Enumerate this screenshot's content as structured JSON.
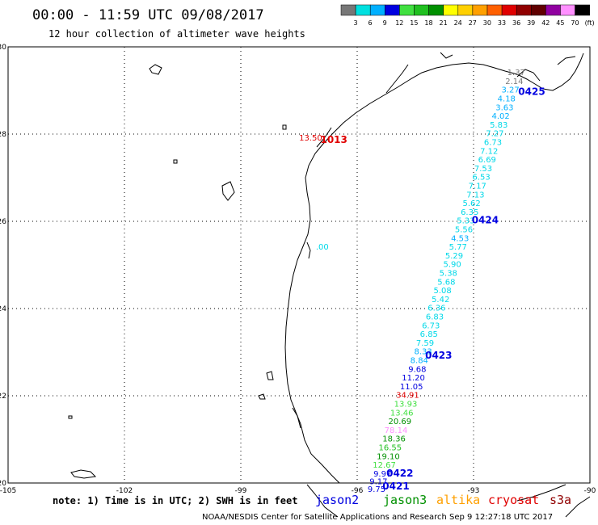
{
  "title": "00:00 - 11:59 UTC 09/08/2017",
  "subtitle": "12 hour collection of altimeter wave heights",
  "colorbar": {
    "labels": [
      "3",
      "6",
      "9",
      "12",
      "15",
      "18",
      "21",
      "24",
      "27",
      "30",
      "33",
      "36",
      "39",
      "42",
      "45",
      "70",
      "(ft)"
    ],
    "colors": [
      "#777777",
      "#00e0e0",
      "#00b0ff",
      "#0000e0",
      "#40e040",
      "#20c020",
      "#009000",
      "#ffff00",
      "#ffd000",
      "#ffa000",
      "#ff6000",
      "#e00000",
      "#900000",
      "#600000",
      "#9000a0",
      "#ff90ff",
      "#000000"
    ]
  },
  "axes": {
    "lon_labels": [
      "-105",
      "-102",
      "-99",
      "-96",
      "-93",
      "-90"
    ],
    "lat_labels": [
      "30",
      "28",
      "26",
      "24",
      "22",
      "20"
    ]
  },
  "swh_points": [
    {
      "text": "1.37",
      "lon": -91.9,
      "lat": 29.35,
      "color": "#777777"
    },
    {
      "text": "2.14",
      "lon": -91.95,
      "lat": 29.15,
      "color": "#777777"
    },
    {
      "text": "3.27",
      "lon": -92.05,
      "lat": 28.95,
      "color": "#00b0ff"
    },
    {
      "text": "4.18",
      "lon": -92.15,
      "lat": 28.75,
      "color": "#00b0ff"
    },
    {
      "text": "3.63",
      "lon": -92.2,
      "lat": 28.55,
      "color": "#00b0ff"
    },
    {
      "text": "4.02",
      "lon": -92.3,
      "lat": 28.35,
      "color": "#00b0ff"
    },
    {
      "text": "5.83",
      "lon": -92.35,
      "lat": 28.15,
      "color": "#00d8e8"
    },
    {
      "text": "7.27",
      "lon": -92.45,
      "lat": 27.95,
      "color": "#00d8e8"
    },
    {
      "text": "6.73",
      "lon": -92.5,
      "lat": 27.75,
      "color": "#00d8e8"
    },
    {
      "text": "7.12",
      "lon": -92.6,
      "lat": 27.55,
      "color": "#00d8e8"
    },
    {
      "text": "6.69",
      "lon": -92.65,
      "lat": 27.35,
      "color": "#00d8e8"
    },
    {
      "text": "7.53",
      "lon": -92.75,
      "lat": 27.15,
      "color": "#00d8e8"
    },
    {
      "text": "6.53",
      "lon": -92.8,
      "lat": 26.95,
      "color": "#00d8e8"
    },
    {
      "text": "7.17",
      "lon": -92.9,
      "lat": 26.75,
      "color": "#00d8e8"
    },
    {
      "text": "7.13",
      "lon": -92.95,
      "lat": 26.55,
      "color": "#00d8e8"
    },
    {
      "text": "5.62",
      "lon": -93.05,
      "lat": 26.35,
      "color": "#00d8e8"
    },
    {
      "text": "6.35",
      "lon": -93.1,
      "lat": 26.15,
      "color": "#00d8e8"
    },
    {
      "text": "5.33",
      "lon": -93.2,
      "lat": 25.95,
      "color": "#00d8e8"
    },
    {
      "text": "5.56",
      "lon": -93.25,
      "lat": 25.75,
      "color": "#00d8e8"
    },
    {
      "text": "4.53",
      "lon": -93.35,
      "lat": 25.55,
      "color": "#00b0ff"
    },
    {
      "text": "5.77",
      "lon": -93.4,
      "lat": 25.35,
      "color": "#00d8e8"
    },
    {
      "text": "5.29",
      "lon": -93.5,
      "lat": 25.15,
      "color": "#00d8e8"
    },
    {
      "text": "5.90",
      "lon": -93.55,
      "lat": 24.95,
      "color": "#00d8e8"
    },
    {
      "text": "5.38",
      "lon": -93.65,
      "lat": 24.75,
      "color": "#00d8e8"
    },
    {
      "text": "5.68",
      "lon": -93.7,
      "lat": 24.55,
      "color": "#00d8e8"
    },
    {
      "text": "5.08",
      "lon": -93.8,
      "lat": 24.35,
      "color": "#00d8e8"
    },
    {
      "text": "5.42",
      "lon": -93.85,
      "lat": 24.15,
      "color": "#00d8e8"
    },
    {
      "text": "6.36",
      "lon": -93.95,
      "lat": 23.95,
      "color": "#00d8e8"
    },
    {
      "text": "6.83",
      "lon": -94.0,
      "lat": 23.75,
      "color": "#00d8e8"
    },
    {
      "text": "6.73",
      "lon": -94.1,
      "lat": 23.55,
      "color": "#00d8e8"
    },
    {
      "text": "6.85",
      "lon": -94.15,
      "lat": 23.35,
      "color": "#00d8e8"
    },
    {
      "text": "7.59",
      "lon": -94.25,
      "lat": 23.15,
      "color": "#00d8e8"
    },
    {
      "text": "8.33",
      "lon": -94.3,
      "lat": 22.95,
      "color": "#00b0ff"
    },
    {
      "text": "8.84",
      "lon": -94.4,
      "lat": 22.75,
      "color": "#00b0ff"
    },
    {
      "text": "9.68",
      "lon": -94.45,
      "lat": 22.55,
      "color": "#0000e0"
    },
    {
      "text": "11.20",
      "lon": -94.55,
      "lat": 22.35,
      "color": "#0000e0"
    },
    {
      "text": "11.05",
      "lon": -94.6,
      "lat": 22.15,
      "color": "#0000e0"
    },
    {
      "text": "34.91",
      "lon": -94.7,
      "lat": 21.95,
      "color": "#e00000"
    },
    {
      "text": "13.93",
      "lon": -94.75,
      "lat": 21.75,
      "color": "#40e040"
    },
    {
      "text": "13.46",
      "lon": -94.85,
      "lat": 21.55,
      "color": "#40e040"
    },
    {
      "text": "20.69",
      "lon": -94.9,
      "lat": 21.35,
      "color": "#009000"
    },
    {
      "text": "78.14",
      "lon": -95.0,
      "lat": 21.15,
      "color": "#ff90ff"
    },
    {
      "text": "18.36",
      "lon": -95.05,
      "lat": 20.95,
      "color": "#009000"
    },
    {
      "text": "16.55",
      "lon": -95.15,
      "lat": 20.75,
      "color": "#20c020"
    },
    {
      "text": "19.10",
      "lon": -95.2,
      "lat": 20.55,
      "color": "#009000"
    },
    {
      "text": "12.67",
      "lon": -95.3,
      "lat": 20.35,
      "color": "#40e040"
    },
    {
      "text": "9.97",
      "lon": -95.35,
      "lat": 20.15,
      "color": "#0000e0"
    },
    {
      "text": "9.17",
      "lon": -95.45,
      "lat": 19.97,
      "color": "#0000e0"
    },
    {
      "text": "9.75",
      "lon": -95.5,
      "lat": 19.8,
      "color": "#0000e0"
    }
  ],
  "extra_points": [
    {
      "text": "13.50",
      "lon": -97.2,
      "lat": 27.85,
      "color": "#e00000"
    },
    {
      "text": ".00",
      "lon": -96.9,
      "lat": 25.35,
      "color": "#00d8e8"
    }
  ],
  "pass_labels": [
    {
      "text": "0425",
      "lon": -91.5,
      "lat": 28.9,
      "color": "#0000e0"
    },
    {
      "text": "1013",
      "lon": -96.6,
      "lat": 27.8,
      "color": "#e00000"
    },
    {
      "text": "0424",
      "lon": -92.7,
      "lat": 25.95,
      "color": "#0000e0"
    },
    {
      "text": "0423",
      "lon": -93.9,
      "lat": 22.85,
      "color": "#0000e0"
    },
    {
      "text": "0422",
      "lon": -94.9,
      "lat": 20.15,
      "color": "#0000e0"
    },
    {
      "text": "0421",
      "lon": -95.0,
      "lat": 19.85,
      "color": "#0000e0"
    }
  ],
  "note": "note: 1) Time is in UTC; 2) SWH is in feet",
  "satellites": [
    {
      "name": "jason2",
      "color": "#0000e0"
    },
    {
      "name": "jason3",
      "color": "#009000"
    },
    {
      "name": "altika",
      "color": "#ffa000"
    },
    {
      "name": "cryosat",
      "color": "#e00000"
    },
    {
      "name": "s3a",
      "color": "#900000"
    }
  ],
  "credit": "NOAA/NESDIS Center for Satellite Applications and Research    Sep  9 12:27:18 UTC 2017"
}
